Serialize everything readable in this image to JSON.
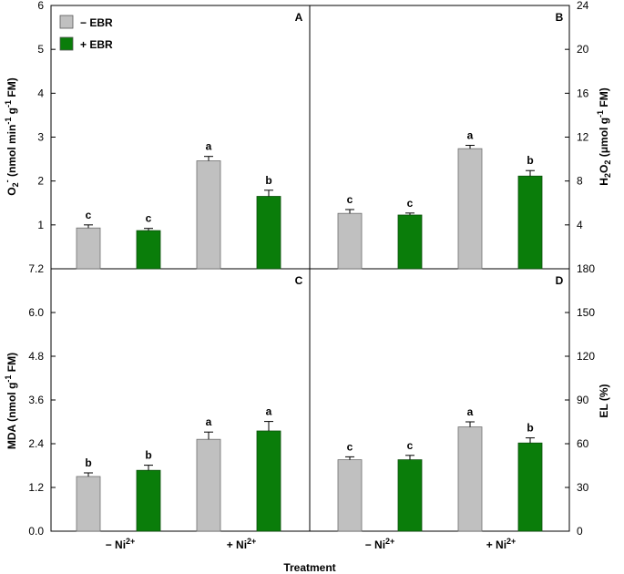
{
  "colors": {
    "minus_ebr": "#c0c0c0",
    "plus_ebr": "#0a7d0a",
    "axis": "#000000"
  },
  "legend": {
    "minus_ebr": "− EBR",
    "plus_ebr": "+ EBR"
  },
  "xlabel": "Treatment",
  "categories": [
    "− Ni2+",
    "+ Ni2+"
  ],
  "category_parts": [
    {
      "base": "− Ni",
      "sup": "2+"
    },
    {
      "base": "+ Ni",
      "sup": "2+"
    }
  ],
  "chart_data": [
    {
      "type": "bar",
      "panel": "A",
      "categories": [
        "− Ni2+",
        "+ Ni2+"
      ],
      "ylabel": {
        "base": "O",
        "sub": "2",
        "sup": "-",
        "rest": " (nmol min",
        "sup2": "-1",
        "rest2": " g",
        "sup3": "-1",
        "rest3": " FM)"
      },
      "ylabel_text": "O2- (nmol min-1 g-1 FM)",
      "ylim": [
        0,
        6
      ],
      "yticks": [
        "1",
        "2",
        "3",
        "4",
        "5",
        "6"
      ],
      "series": [
        {
          "name": "− EBR",
          "values": [
            0.93,
            2.46
          ],
          "errors": [
            0.07,
            0.1
          ],
          "letters": [
            "c",
            "a"
          ]
        },
        {
          "name": "+ EBR",
          "values": [
            0.87,
            1.65
          ],
          "errors": [
            0.05,
            0.14
          ],
          "letters": [
            "c",
            "b"
          ]
        }
      ]
    },
    {
      "type": "bar",
      "panel": "B",
      "categories": [
        "− Ni2+",
        "+ Ni2+"
      ],
      "ylabel": {
        "base": "H",
        "sub": "2",
        "mid": "O",
        "sub2": "2",
        "rest": " (μmol g",
        "sup": "-1",
        "rest2": " FM)"
      },
      "ylabel_text": "H2O2 (μmol g-1 FM)",
      "ylim": [
        0,
        24
      ],
      "yticks": [
        "4",
        "8",
        "12",
        "16",
        "20",
        "24"
      ],
      "series": [
        {
          "name": "− EBR",
          "values": [
            5.05,
            10.95
          ],
          "errors": [
            0.35,
            0.3
          ],
          "letters": [
            "c",
            "a"
          ]
        },
        {
          "name": "+ EBR",
          "values": [
            4.9,
            8.45
          ],
          "errors": [
            0.18,
            0.5
          ],
          "letters": [
            "c",
            "b"
          ]
        }
      ]
    },
    {
      "type": "bar",
      "panel": "C",
      "categories": [
        "− Ni2+",
        "+ Ni2+"
      ],
      "ylabel": {
        "base": "MDA (nmol g",
        "sup": "-1",
        "rest": " FM)"
      },
      "ylabel_text": "MDA (nmol g-1 FM)",
      "ylim": [
        0,
        7.2
      ],
      "yticks": [
        "0.0",
        "1.2",
        "2.4",
        "3.6",
        "4.8",
        "6.0",
        "7.2"
      ],
      "series": [
        {
          "name": "− EBR",
          "values": [
            1.5,
            2.52
          ],
          "errors": [
            0.1,
            0.2
          ],
          "letters": [
            "b",
            "a"
          ]
        },
        {
          "name": "+ EBR",
          "values": [
            1.67,
            2.75
          ],
          "errors": [
            0.14,
            0.26
          ],
          "letters": [
            "b",
            "a"
          ]
        }
      ]
    },
    {
      "type": "bar",
      "panel": "D",
      "categories": [
        "− Ni2+",
        "+ Ni2+"
      ],
      "ylabel": {
        "base": "EL (%)"
      },
      "ylabel_text": "EL (%)",
      "ylim": [
        0,
        180
      ],
      "yticks": [
        "0",
        "30",
        "60",
        "90",
        "120",
        "150",
        "180"
      ],
      "series": [
        {
          "name": "− EBR",
          "values": [
            49,
            71.5
          ],
          "errors": [
            2,
            3.5
          ],
          "letters": [
            "c",
            "a"
          ]
        },
        {
          "name": "+ EBR",
          "values": [
            49,
            60.5
          ],
          "errors": [
            3,
            3.5
          ],
          "letters": [
            "c",
            "b"
          ]
        }
      ]
    }
  ]
}
